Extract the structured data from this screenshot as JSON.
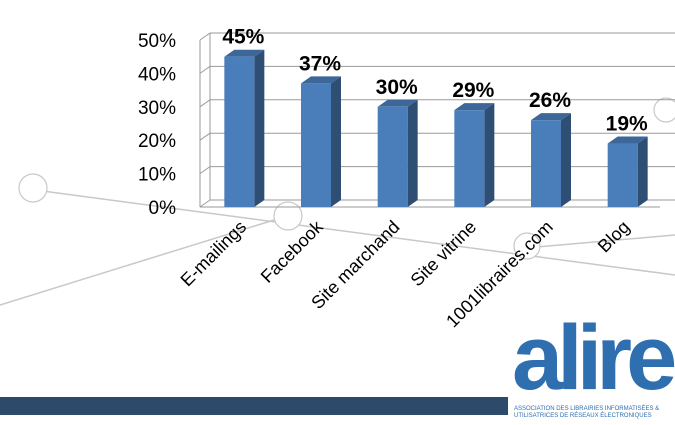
{
  "chart_data": {
    "type": "bar",
    "categories": [
      "E-mailings",
      "Facebook",
      "Site marchand",
      "Site vitrine",
      "1001libraires.com",
      "Blog"
    ],
    "values": [
      45,
      37,
      30,
      29,
      26,
      19
    ],
    "data_labels": [
      "45%",
      "37%",
      "30%",
      "29%",
      "26%",
      "19%"
    ],
    "y_ticks": [
      "0%",
      "10%",
      "20%",
      "30%",
      "40%",
      "50%"
    ],
    "ylim": [
      0,
      50
    ],
    "grid": true,
    "bar_color": "#4a7ebb",
    "title": "",
    "xlabel": "",
    "ylabel": ""
  },
  "logo": {
    "word": "alire",
    "tagline": "ASSOCIATION DES LIBRAIRIES INFORMATISÉES & UTILISATRICES DE RÉSEAUX ÉLECTRONIQUES",
    "color": "#2f6fb0"
  },
  "footer_color": "#2e4a6b"
}
